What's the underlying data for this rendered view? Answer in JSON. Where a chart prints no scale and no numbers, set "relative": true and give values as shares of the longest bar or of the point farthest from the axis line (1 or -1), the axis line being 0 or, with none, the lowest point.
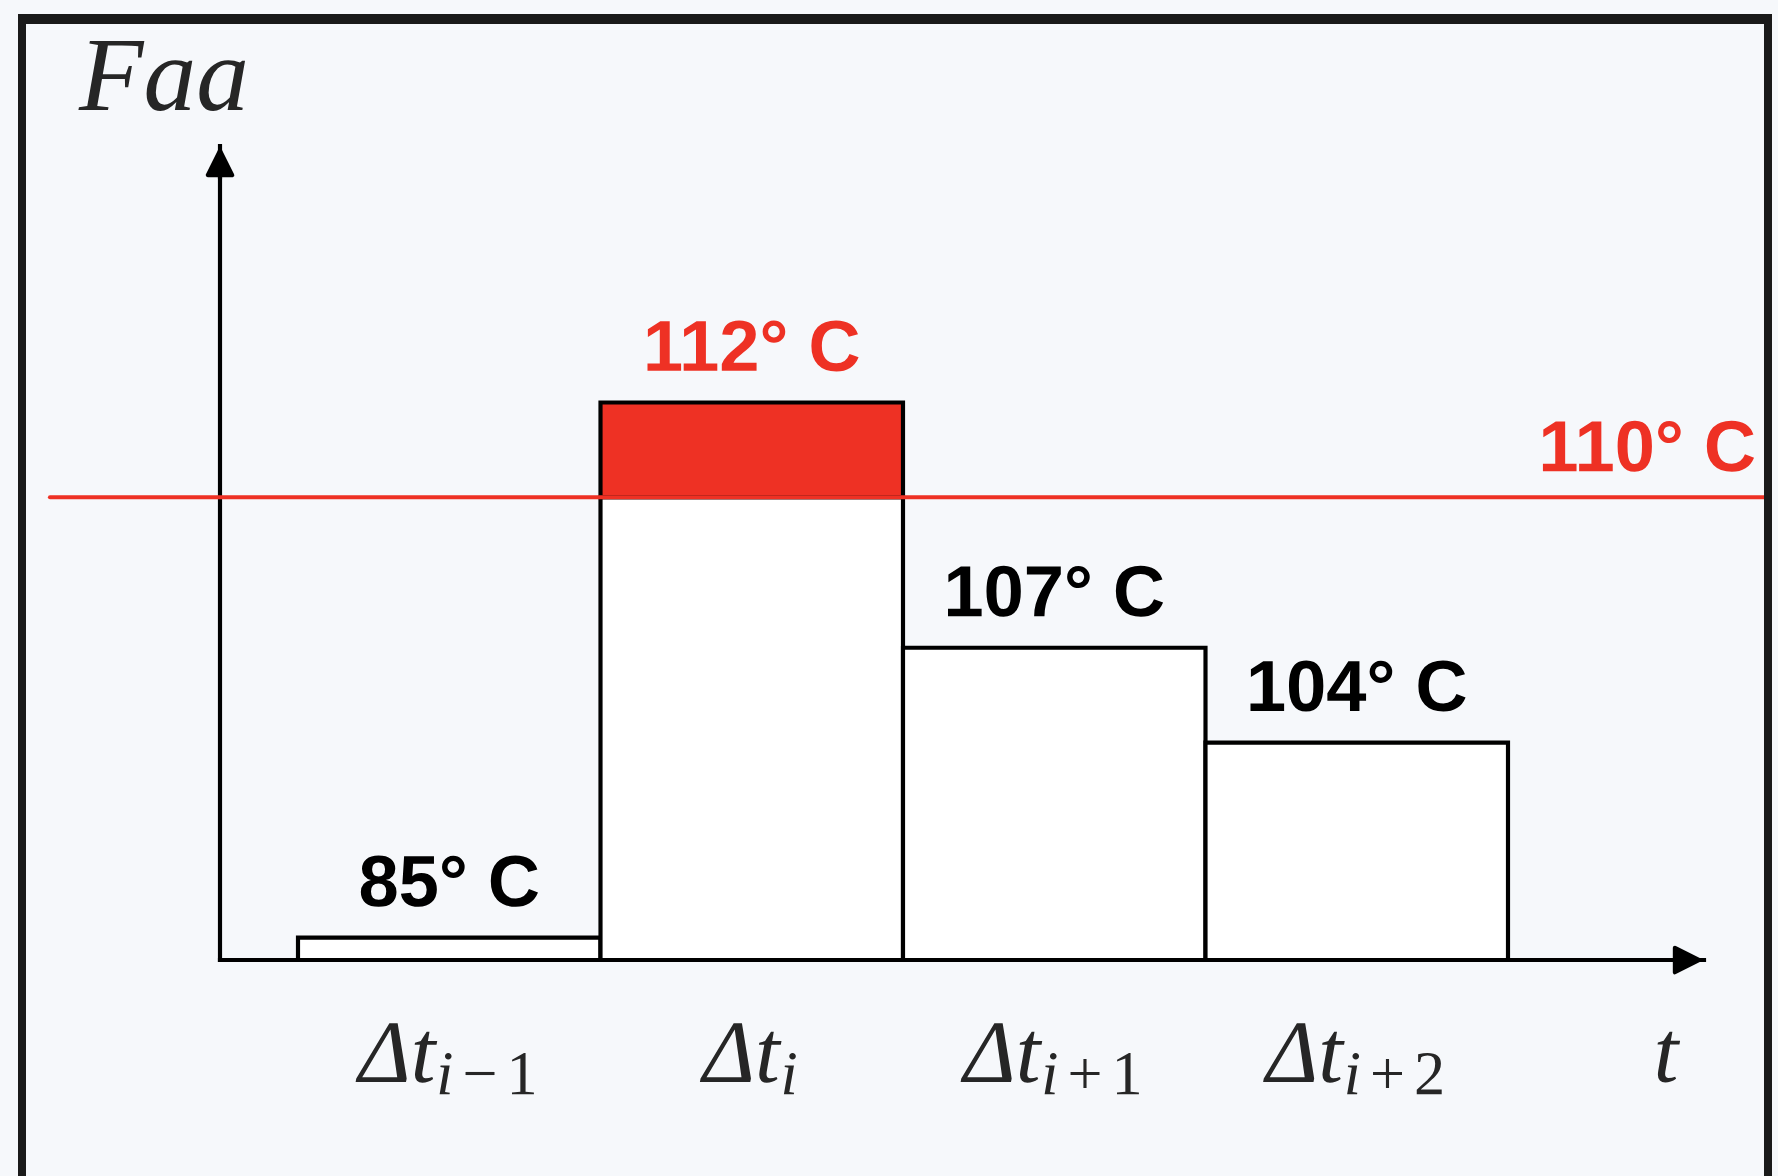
{
  "chart_data": {
    "type": "bar",
    "relative": true,
    "stacked": true,
    "ylabel": "Faa",
    "xlabel": "t",
    "categories": [
      "Δt$_{i−1}$",
      "Δt$_{i}$",
      "Δt$_{i+1}$",
      "Δt$_{i+2}$"
    ],
    "series": [
      {
        "color": "#ffffff",
        "values": [
          0.04,
          0.83,
          0.56,
          0.39
        ]
      },
      {
        "color": "#ee3124",
        "values": [
          null,
          0.17,
          null,
          null
        ]
      }
    ],
    "ref_lines": [
      {
        "axis": "y",
        "value": 0.83,
        "label": "110° C",
        "color": "#ee3124"
      }
    ],
    "annotations": [
      {
        "text": "85° C",
        "x": "Δt$_{i−1}$",
        "y": 0.04
      },
      {
        "text": "112° C",
        "x": "Δt$_{i}$",
        "y": 1.0
      },
      {
        "text": "107° C",
        "x": "Δt$_{i+1}$",
        "y": 0.56
      },
      {
        "text": "104° C",
        "x": "Δt$_{i+2}$",
        "y": 0.39
      }
    ]
  }
}
